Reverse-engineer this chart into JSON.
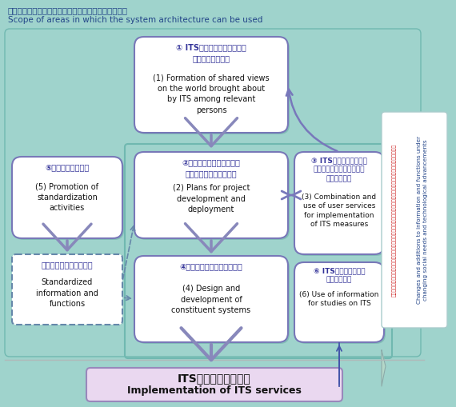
{
  "bg_color": "#9fd3cc",
  "title_jp": "システムアーキテクチャを活用することが可能な範囲",
  "title_en": "Scope of areas in which the system architecture can be used",
  "box1_jp": "① ITSが実現する世界に係る\n　共通認識の形成",
  "box1_en": "(1) Formation of shared views\non the world brought about\nby ITS among relevant\npersons",
  "box2_jp": "②プロジェクト等の開発・\n　展開に係る計画の策定",
  "box2_en": "(2) Plans for project\ndevelopment and\ndeployment",
  "box3_jp": "③ ITS施策実現のための\n　利用者サービスの組み合\n　わせ・活用",
  "box3_en": "(3) Combination and\nuse of user services\nfor implementation\nof ITS measures",
  "box4_jp": "④個別システムの設計・開発",
  "box4_en": "(4) Design and\ndevelopment of\nconstituent systems",
  "box5_jp": "⑤標準化活動の促進",
  "box5_en": "(5) Promotion of\nstandardization\nactivities",
  "box5b_jp": "標準化された情報や機能",
  "box5b_en": "Standardized\ninformation and\nfunctions",
  "box6_jp": "⑥ ITS研究等のための\n　情報の利用",
  "box6_en": "(6) Use of information\nfor studies on ITS",
  "bottom_jp": "ITSのサービスの実現",
  "bottom_en": "Implementation of ITS services",
  "side_en": "Changes and additions to information and functions under\nchanging social needs and technological advancements",
  "side_jp": "利用の需要及び提供情報や機能の技術の進化や変化によるシステムアーキテクチャへの情報・機能の追加及び変更",
  "box_fill": "#ffffff",
  "box_border": "#7878b8",
  "arrow_fill": "#8888bb",
  "arrow_color": "#7878bb",
  "bottom_fill": "#ead8f0",
  "bottom_border": "#9988bb",
  "inner_bg": "#8ecfca",
  "side_fill": "#ffffff",
  "side_border": "#aacccc"
}
